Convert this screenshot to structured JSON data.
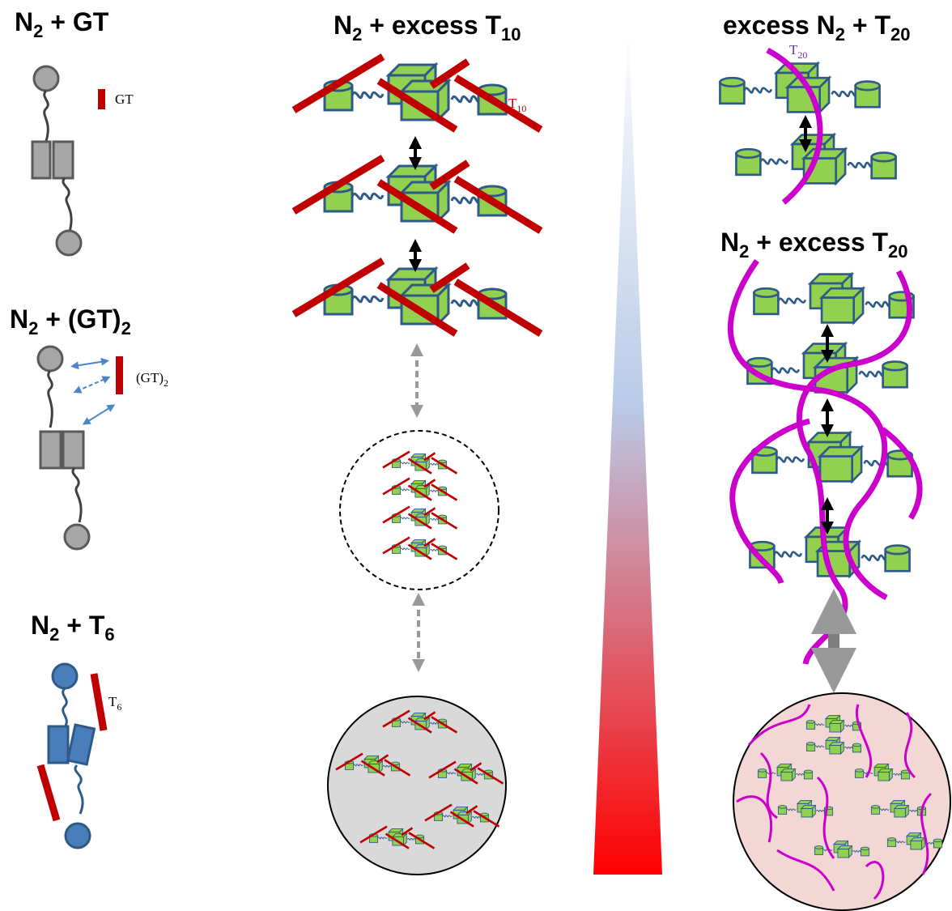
{
  "left": {
    "panel_gt": {
      "title": [
        "N",
        "2",
        " + GT"
      ],
      "label": "GT"
    },
    "panel_gt2": {
      "title": [
        "N",
        "2",
        " + (GT)",
        "2"
      ],
      "label": [
        "(GT)",
        "2"
      ]
    },
    "panel_t6": {
      "title": [
        "N",
        "2",
        " + T",
        "6"
      ],
      "label": [
        "T",
        "6"
      ]
    }
  },
  "middle": {
    "title": [
      "N",
      "2",
      " + excess T",
      "10"
    ],
    "label": [
      "T",
      "10"
    ]
  },
  "right": {
    "top_title": [
      "excess N",
      "2",
      " + T",
      "20"
    ],
    "top_label": [
      "T",
      "20"
    ],
    "bottom_title": [
      "N",
      "2",
      " + excess T",
      "20"
    ]
  }
}
